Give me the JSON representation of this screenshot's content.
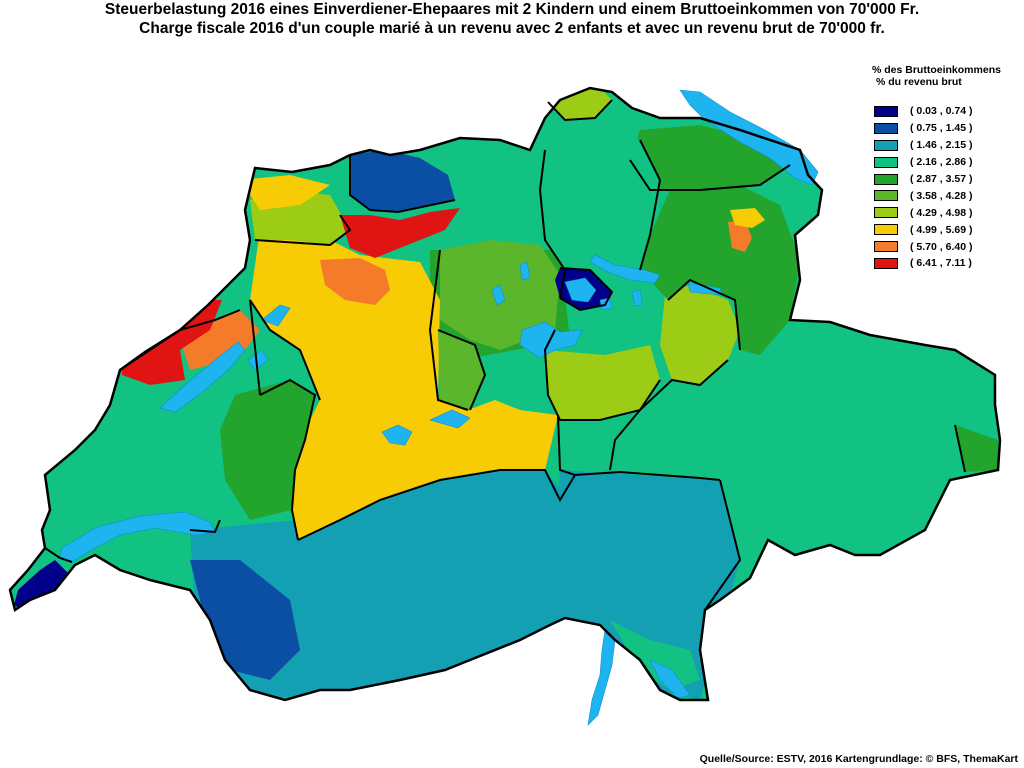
{
  "title": {
    "line1": "Steuerbelastung 2016 eines Einverdiener-Ehepaares mit 2 Kindern und einem Bruttoeinkommen von 70'000 Fr.",
    "line2": "Charge fiscale 2016 d'un couple marié à un revenu avec 2 enfants et avec un revenu brut de 70'000 fr."
  },
  "legend": {
    "heading_de": "% des Bruttoeinkommens",
    "heading_fr": "% du revenu brut",
    "classes": [
      {
        "label": "( 0.03 , 0.74 )",
        "color": "#00008b"
      },
      {
        "label": "( 0.75 , 1.45 )",
        "color": "#0a4fa3"
      },
      {
        "label": "( 1.46 , 2.15 )",
        "color": "#12a0b2"
      },
      {
        "label": "( 2.16 , 2.86 )",
        "color": "#11c282"
      },
      {
        "label": "( 2.87 , 3.57 )",
        "color": "#23a42c"
      },
      {
        "label": "( 3.58 , 4.28 )",
        "color": "#5bb62b"
      },
      {
        "label": "( 4.29 , 4.98 )",
        "color": "#9dcc16"
      },
      {
        "label": "( 4.99 , 5.69 )",
        "color": "#f7cc05"
      },
      {
        "label": "( 5.70 , 6.40 )",
        "color": "#f37b2a"
      },
      {
        "label": "( 6.41 , 7.11 )",
        "color": "#e11414"
      }
    ]
  },
  "map": {
    "lake_color": "#1eb4f0",
    "border_color": "#000000",
    "regions": [
      {
        "name": "base-east",
        "class": 3
      },
      {
        "name": "base-center",
        "class": 4
      },
      {
        "name": "jura-plateau",
        "class": 3
      },
      {
        "name": "ticino-graubuenden-south",
        "class": 2
      },
      {
        "name": "valais",
        "class": 2
      },
      {
        "name": "valais-west",
        "class": 1
      },
      {
        "name": "bern-plateau",
        "class": 7
      },
      {
        "name": "bern-oberland",
        "class": 7
      },
      {
        "name": "uri-glarus",
        "class": 6
      },
      {
        "name": "schwyz",
        "class": 6
      },
      {
        "name": "fribourg",
        "class": 4
      },
      {
        "name": "aargau-lucerne",
        "class": 5
      },
      {
        "name": "lucerne-west",
        "class": 5
      },
      {
        "name": "st-gallen",
        "class": 4
      },
      {
        "name": "thurgau",
        "class": 4
      },
      {
        "name": "zurich",
        "class": 3
      },
      {
        "name": "jura",
        "class": 6
      },
      {
        "name": "jura-bern-yellow",
        "class": 7
      },
      {
        "name": "vaud-orange",
        "class": 8
      },
      {
        "name": "neuchatel-red",
        "class": 9
      },
      {
        "name": "solothurn-red",
        "class": 9
      },
      {
        "name": "solothurn-orange",
        "class": 8
      },
      {
        "name": "basel",
        "class": 1
      },
      {
        "name": "schaffhausen",
        "class": 6
      },
      {
        "name": "zug",
        "class": 0
      },
      {
        "name": "geneva",
        "class": 0
      },
      {
        "name": "appenzell-orange",
        "class": 8
      },
      {
        "name": "appenzell-yellow",
        "class": 7
      },
      {
        "name": "graubuenden-green",
        "class": 4
      },
      {
        "name": "ticino-teal",
        "class": 3
      }
    ]
  },
  "source": "Quelle/Source: ESTV, 2016 Kartengrundlage: © BFS, ThemaKart"
}
